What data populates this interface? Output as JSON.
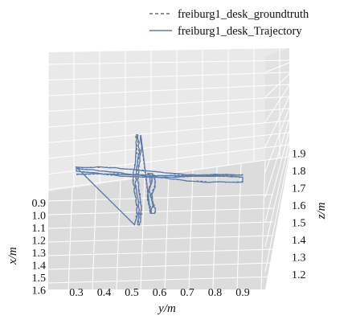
{
  "chart_data": {
    "type": "line",
    "projection": "3d",
    "title": "",
    "xlabel": "y/m",
    "ylabel": "x/m",
    "zlabel": "z/m",
    "x_axis": {
      "name": "x",
      "unit": "m",
      "range": [
        0.9,
        1.6
      ],
      "ticks": [
        "0.9",
        "1.0",
        "1.1",
        "1.2",
        "1.3",
        "1.4",
        "1.5",
        "1.6"
      ]
    },
    "y_axis": {
      "name": "y",
      "unit": "m",
      "range": [
        0.25,
        1.0
      ],
      "ticks": [
        "0.3",
        "0.4",
        "0.5",
        "0.6",
        "0.7",
        "0.8",
        "0.9"
      ]
    },
    "z_axis": {
      "name": "z",
      "unit": "m",
      "range": [
        1.2,
        1.95
      ],
      "ticks": [
        "1.2",
        "1.3",
        "1.4",
        "1.5",
        "1.6",
        "1.7",
        "1.8",
        "1.9"
      ]
    },
    "grid": true,
    "legend_position": "top-right",
    "series": [
      {
        "name": "freiburg1_desk_groundtruth",
        "style": "dashed",
        "color": "#6a6a6a"
      },
      {
        "name": "freiburg1_desk_Trajectory",
        "style": "solid",
        "color": "#5b7cae"
      }
    ],
    "trajectory_yz": {
      "horizontal_sweep": {
        "y_range": [
          0.3,
          0.9
        ],
        "z_range": [
          1.75,
          1.8
        ]
      },
      "vertical_sweeps": [
        {
          "y": 0.52,
          "z_range": [
            1.48,
            2.0
          ]
        },
        {
          "y": 0.57,
          "z_range": [
            1.55,
            1.78
          ]
        }
      ]
    }
  }
}
